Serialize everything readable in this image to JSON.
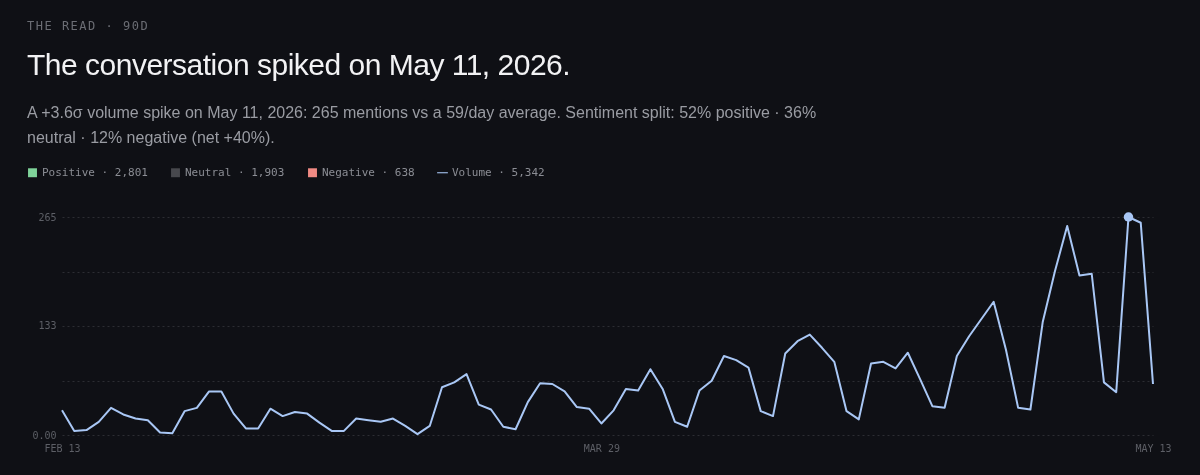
{
  "chart_data": {
    "type": "line",
    "title": "The conversation spiked on May 11, 2026.",
    "subtitle": "A +3.6σ volume spike on May 11, 2026: 265 mentions vs a 59/day average. Sentiment split: 52% positive · 36% neutral · 12% negative (net +40%).",
    "annotations": [
      "THE READ · 90D"
    ],
    "x": [
      "2026-02-13",
      "2026-02-14",
      "2026-02-15",
      "2026-02-16",
      "2026-02-17",
      "2026-02-18",
      "2026-02-19",
      "2026-02-20",
      "2026-02-21",
      "2026-02-22",
      "2026-02-23",
      "2026-02-24",
      "2026-02-25",
      "2026-02-26",
      "2026-02-27",
      "2026-02-28",
      "2026-03-01",
      "2026-03-02",
      "2026-03-03",
      "2026-03-04",
      "2026-03-05",
      "2026-03-06",
      "2026-03-07",
      "2026-03-08",
      "2026-03-09",
      "2026-03-10",
      "2026-03-11",
      "2026-03-12",
      "2026-03-13",
      "2026-03-14",
      "2026-03-15",
      "2026-03-16",
      "2026-03-17",
      "2026-03-18",
      "2026-03-19",
      "2026-03-20",
      "2026-03-21",
      "2026-03-22",
      "2026-03-23",
      "2026-03-24",
      "2026-03-25",
      "2026-03-26",
      "2026-03-27",
      "2026-03-28",
      "2026-03-29",
      "2026-03-30",
      "2026-03-31",
      "2026-04-01",
      "2026-04-02",
      "2026-04-03",
      "2026-04-04",
      "2026-04-05",
      "2026-04-06",
      "2026-04-07",
      "2026-04-08",
      "2026-04-09",
      "2026-04-10",
      "2026-04-11",
      "2026-04-12",
      "2026-04-13",
      "2026-04-14",
      "2026-04-15",
      "2026-04-16",
      "2026-04-17",
      "2026-04-18",
      "2026-04-19",
      "2026-04-20",
      "2026-04-21",
      "2026-04-22",
      "2026-04-23",
      "2026-04-24",
      "2026-04-25",
      "2026-04-26",
      "2026-04-27",
      "2026-04-28",
      "2026-04-29",
      "2026-04-30",
      "2026-05-01",
      "2026-05-02",
      "2026-05-03",
      "2026-05-04",
      "2026-05-05",
      "2026-05-06",
      "2026-05-07",
      "2026-05-08",
      "2026-05-09",
      "2026-05-10",
      "2026-05-11",
      "2026-05-12",
      "2026-05-13"
    ],
    "series": [
      {
        "name": "Positive · 2,801",
        "type": "bar",
        "color": "#7fd39a",
        "values": [
          null,
          null,
          null,
          null,
          null,
          null,
          null,
          null,
          null,
          null,
          null,
          null,
          null,
          null,
          null,
          null,
          null,
          null,
          null,
          null,
          null,
          null,
          null,
          null,
          null,
          null,
          null,
          null,
          null,
          null,
          null,
          null,
          null,
          null,
          null,
          null,
          null,
          null,
          null,
          null,
          null,
          null,
          null,
          null,
          null,
          null,
          null,
          null,
          null,
          null,
          null,
          null,
          null,
          null,
          null,
          null,
          null,
          null,
          null,
          null,
          null,
          null,
          null,
          null,
          null,
          null,
          null,
          null,
          null,
          null,
          null,
          null,
          null,
          null,
          null,
          null,
          null,
          null,
          null,
          null,
          null,
          null,
          null,
          null,
          null,
          null,
          null,
          null,
          null,
          null
        ]
      },
      {
        "name": "Neutral · 1,903",
        "type": "bar",
        "color": "#47484d",
        "values": [
          null,
          null,
          null,
          null,
          null,
          null,
          null,
          null,
          null,
          null,
          null,
          null,
          null,
          null,
          null,
          null,
          null,
          null,
          null,
          null,
          null,
          null,
          null,
          null,
          null,
          null,
          null,
          null,
          null,
          null,
          null,
          null,
          null,
          null,
          null,
          null,
          null,
          null,
          null,
          null,
          null,
          null,
          null,
          null,
          null,
          null,
          null,
          null,
          null,
          null,
          null,
          null,
          null,
          null,
          null,
          null,
          null,
          null,
          null,
          null,
          null,
          null,
          null,
          null,
          null,
          null,
          null,
          null,
          null,
          null,
          null,
          null,
          null,
          null,
          null,
          null,
          null,
          null,
          null,
          null,
          null,
          null,
          null,
          null,
          null,
          null,
          null,
          null,
          null,
          null
        ]
      },
      {
        "name": "Negative · 638",
        "type": "bar",
        "color": "#f08a84",
        "values": [
          null,
          null,
          null,
          null,
          null,
          null,
          null,
          null,
          null,
          null,
          null,
          null,
          null,
          null,
          null,
          null,
          null,
          null,
          null,
          null,
          null,
          null,
          null,
          null,
          null,
          null,
          null,
          null,
          null,
          null,
          null,
          null,
          null,
          null,
          null,
          null,
          null,
          null,
          null,
          null,
          null,
          null,
          null,
          null,
          null,
          null,
          null,
          null,
          null,
          null,
          null,
          null,
          null,
          null,
          null,
          null,
          null,
          null,
          null,
          null,
          null,
          null,
          null,
          null,
          null,
          null,
          null,
          null,
          null,
          null,
          null,
          null,
          null,
          null,
          null,
          null,
          null,
          null,
          null,
          null,
          null,
          null,
          null,
          null,
          null,
          null,
          null,
          null,
          null,
          null
        ]
      },
      {
        "name": "Volume · 5,342",
        "color": "#a9c7f5",
        "values": [
          30,
          5,
          6,
          16,
          33,
          25,
          20,
          18,
          3,
          2,
          29,
          33,
          53,
          53,
          26,
          8,
          8,
          32,
          23,
          28,
          26,
          15,
          5,
          5,
          20,
          18,
          16,
          20,
          11,
          1,
          11,
          58,
          64,
          74,
          37,
          31,
          10,
          7,
          40,
          63,
          62,
          53,
          34,
          32,
          14,
          30,
          56,
          54,
          80,
          56,
          16,
          10,
          54,
          66,
          96,
          91,
          82,
          29,
          23,
          99,
          114,
          122,
          106,
          89,
          29,
          19,
          87,
          89,
          81,
          100,
          68,
          35,
          33,
          96,
          120,
          141,
          162,
          104,
          33,
          31,
          137,
          199,
          254,
          194,
          196,
          64,
          52,
          265,
          258,
          62
        ]
      },
      {
        "type": "scatter",
        "color": "#a9c7f5",
        "x": [
          "2026-05-11"
        ],
        "values": [
          265
        ]
      }
    ],
    "xlim": [
      "2026-02-13",
      "2026-05-13"
    ],
    "xticks": [
      {
        "value": "2026-02-13",
        "label": "FEB 13"
      },
      {
        "value": "2026-03-29",
        "label": "MAR 29"
      },
      {
        "value": "2026-05-13",
        "label": "MAY 13"
      }
    ],
    "ylim": [
      0,
      265
    ],
    "yticks": [
      {
        "value": 0,
        "label": "0.00"
      },
      {
        "value": 66.25,
        "label": null
      },
      133,
      {
        "value": 198.75,
        "label": null
      },
      265
    ],
    "grid": "y",
    "legend": "top left"
  }
}
